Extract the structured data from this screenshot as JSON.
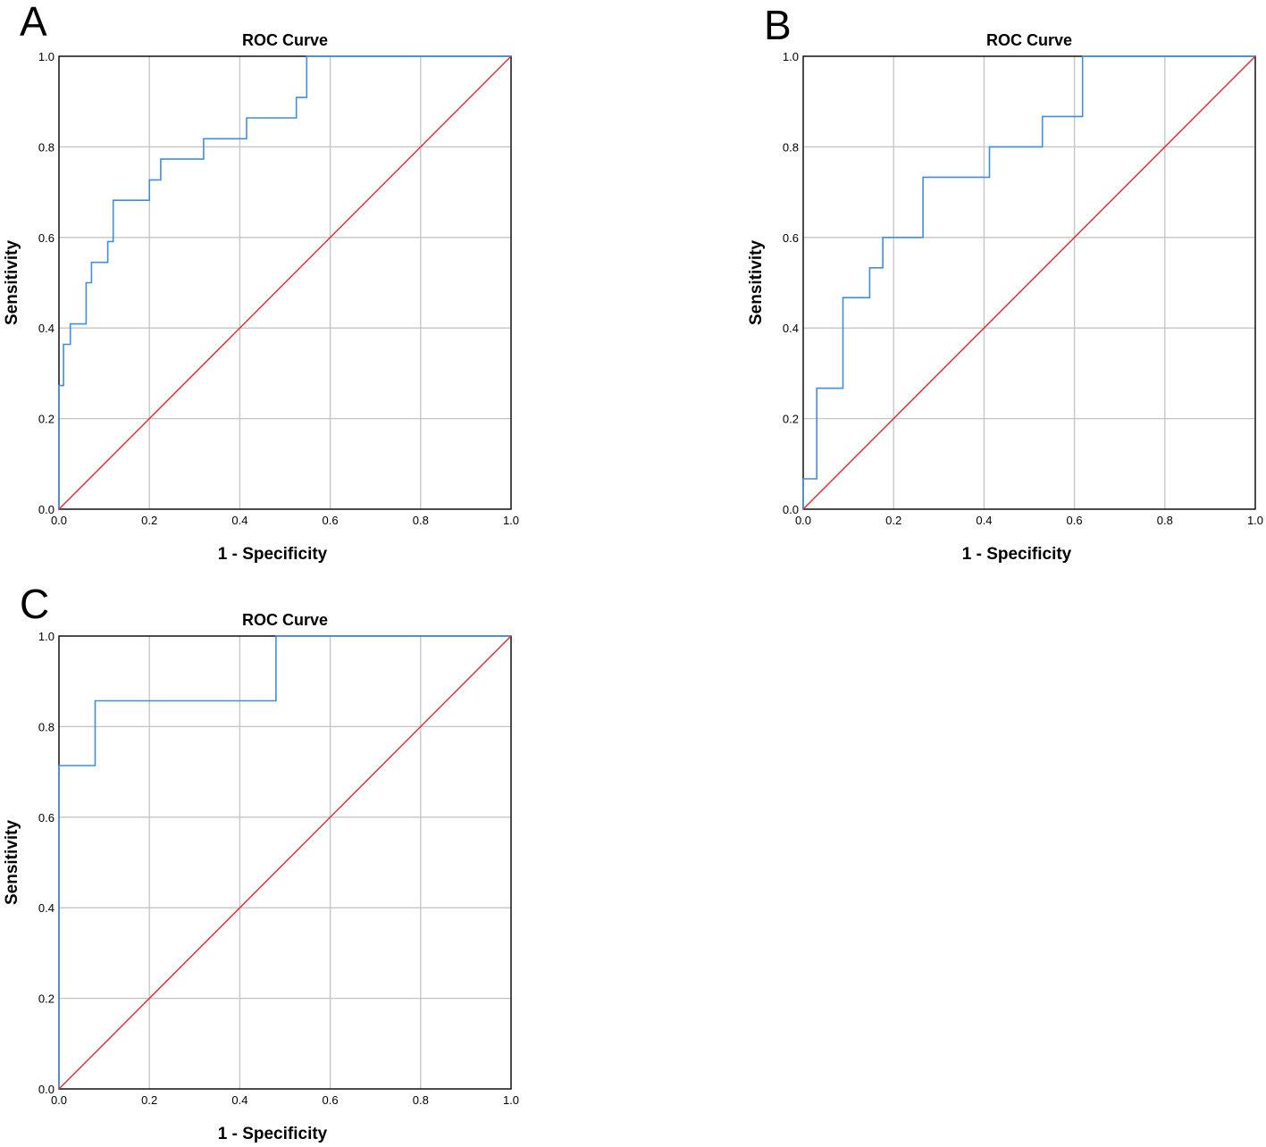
{
  "chart_data": [
    {
      "panel": "A",
      "type": "line",
      "title": "ROC Curve",
      "xlabel": "1 - Specificity",
      "ylabel": "Sensitivity",
      "xlim": [
        0,
        1
      ],
      "ylim": [
        0,
        1
      ],
      "x_ticks": [
        "0.0",
        "0.2",
        "0.4",
        "0.6",
        "0.8",
        "1.0"
      ],
      "y_ticks": [
        "0.0",
        "0.2",
        "0.4",
        "0.6",
        "0.8",
        "1.0"
      ],
      "grid": true,
      "series": [
        {
          "name": "ROC",
          "color": "#3f8fdc",
          "x": [
            0,
            0,
            0.01,
            0.01,
            0.025,
            0.025,
            0.06,
            0.06,
            0.072,
            0.072,
            0.108,
            0.108,
            0.12,
            0.12,
            0.2,
            0.2,
            0.225,
            0.225,
            0.32,
            0.32,
            0.415,
            0.415,
            0.525,
            0.525,
            0.548,
            0.548,
            1
          ],
          "y": [
            0,
            0.273,
            0.273,
            0.364,
            0.364,
            0.409,
            0.409,
            0.5,
            0.5,
            0.545,
            0.545,
            0.591,
            0.591,
            0.682,
            0.682,
            0.727,
            0.727,
            0.773,
            0.773,
            0.818,
            0.818,
            0.864,
            0.864,
            0.909,
            0.909,
            1,
            1
          ]
        },
        {
          "name": "Reference Line",
          "color": "#d9343c",
          "x": [
            0,
            1
          ],
          "y": [
            0,
            1
          ]
        }
      ]
    },
    {
      "panel": "B",
      "type": "line",
      "title": "ROC Curve",
      "xlabel": "1 - Specificity",
      "ylabel": "Sensitivity",
      "xlim": [
        0,
        1
      ],
      "ylim": [
        0,
        1
      ],
      "x_ticks": [
        "0.0",
        "0.2",
        "0.4",
        "0.6",
        "0.8",
        "1.0"
      ],
      "y_ticks": [
        "0.0",
        "0.2",
        "0.4",
        "0.6",
        "0.8",
        "1.0"
      ],
      "grid": true,
      "series": [
        {
          "name": "ROC",
          "color": "#3f8fdc",
          "x": [
            0,
            0,
            0.03,
            0.03,
            0.088,
            0.088,
            0.147,
            0.147,
            0.176,
            0.176,
            0.265,
            0.265,
            0.412,
            0.412,
            0.529,
            0.529,
            0.618,
            0.618,
            1
          ],
          "y": [
            0,
            0.067,
            0.067,
            0.267,
            0.267,
            0.467,
            0.467,
            0.533,
            0.533,
            0.6,
            0.6,
            0.733,
            0.733,
            0.8,
            0.8,
            0.867,
            0.867,
            1,
            1
          ]
        },
        {
          "name": "Reference Line",
          "color": "#d9343c",
          "x": [
            0,
            1
          ],
          "y": [
            0,
            1
          ]
        }
      ]
    },
    {
      "panel": "C",
      "type": "line",
      "title": "ROC Curve",
      "xlabel": "1 - Specificity",
      "ylabel": "Sensitivity",
      "xlim": [
        0,
        1
      ],
      "ylim": [
        0,
        1
      ],
      "x_ticks": [
        "0.0",
        "0.2",
        "0.4",
        "0.6",
        "0.8",
        "1.0"
      ],
      "y_ticks": [
        "0.0",
        "0.2",
        "0.4",
        "0.6",
        "0.8",
        "1.0"
      ],
      "grid": true,
      "series": [
        {
          "name": "ROC",
          "color": "#3f8fdc",
          "x": [
            0,
            0,
            0.08,
            0.08,
            0.48,
            0.48,
            1
          ],
          "y": [
            0,
            0.714,
            0.714,
            0.857,
            0.857,
            1,
            1
          ]
        },
        {
          "name": "Reference Line",
          "color": "#d9343c",
          "x": [
            0,
            1
          ],
          "y": [
            0,
            1
          ]
        }
      ]
    }
  ]
}
